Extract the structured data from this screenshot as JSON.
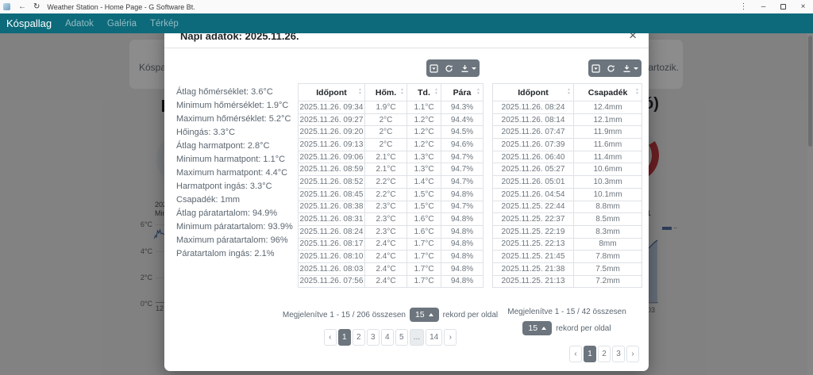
{
  "window": {
    "title": "Weather Station - Home Page - G Software Bt.",
    "controls": {
      "menu": "⋮",
      "minimize": "–",
      "close": "×"
    }
  },
  "icons": {
    "back": "←",
    "refresh": "↻"
  },
  "navbar": {
    "brand": "Kóspallag",
    "items": [
      "Adatok",
      "Galéria",
      "Térkép"
    ]
  },
  "background": {
    "alert_fragment_left": "Kóspallag",
    "alert_fragment_right": "tartozik.",
    "heading_fragment": "ó)",
    "chart_left": {
      "top_labels": [
        "202",
        "Min"
      ],
      "y_axis": [
        "6°C",
        "4°C",
        "2°C",
        "0°C"
      ],
      "x_tick": "12"
    },
    "chart_right": {
      "label_fragment": "1",
      "legend_fragment": "..",
      "x_tick": "03"
    }
  },
  "modal": {
    "title": "Napi adatok: 2025.11.26.",
    "close_label": "×",
    "stats": [
      "Átlag hőmérséklet: 3.6°C",
      "Minimum hőmérséklet: 1.9°C",
      "Maximum hőmérséklet: 5.2°C",
      "Hőingás: 3.3°C",
      "Átlag harmatpont: 2.8°C",
      "Minimum harmatpont: 1.1°C",
      "Maximum harmatpont: 4.4°C",
      "Harmatpont ingás: 3.3°C",
      "Csapadék: 1mm",
      "Átlag páratartalom: 94.9%",
      "Minimum páratartalom: 93.9%",
      "Maximum páratartalom: 96%",
      "Páratartalom ingás: 2.1%"
    ],
    "weather_table": {
      "headers": [
        "Időpont",
        "Hőm.",
        "Td.",
        "Pára"
      ],
      "rows": [
        [
          "2025.11.26. 09:34",
          "1.9°C",
          "1.1°C",
          "94.3%"
        ],
        [
          "2025.11.26. 09:27",
          "2°C",
          "1.2°C",
          "94.4%"
        ],
        [
          "2025.11.26. 09:20",
          "2°C",
          "1.2°C",
          "94.5%"
        ],
        [
          "2025.11.26. 09:13",
          "2°C",
          "1.2°C",
          "94.6%"
        ],
        [
          "2025.11.26. 09:06",
          "2.1°C",
          "1.3°C",
          "94.7%"
        ],
        [
          "2025.11.26. 08:59",
          "2.1°C",
          "1.3°C",
          "94.7%"
        ],
        [
          "2025.11.26. 08:52",
          "2.2°C",
          "1.4°C",
          "94.7%"
        ],
        [
          "2025.11.26. 08:45",
          "2.2°C",
          "1.5°C",
          "94.8%"
        ],
        [
          "2025.11.26. 08:38",
          "2.3°C",
          "1.5°C",
          "94.7%"
        ],
        [
          "2025.11.26. 08:31",
          "2.3°C",
          "1.6°C",
          "94.8%"
        ],
        [
          "2025.11.26. 08:24",
          "2.3°C",
          "1.6°C",
          "94.8%"
        ],
        [
          "2025.11.26. 08:17",
          "2.4°C",
          "1.7°C",
          "94.8%"
        ],
        [
          "2025.11.26. 08:10",
          "2.4°C",
          "1.7°C",
          "94.8%"
        ],
        [
          "2025.11.26. 08:03",
          "2.4°C",
          "1.7°C",
          "94.8%"
        ],
        [
          "2025.11.26. 07:56",
          "2.4°C",
          "1.7°C",
          "94.8%"
        ]
      ],
      "summary": "Megjelenítve 1 - 15 / 206 összesen",
      "page_size": "15",
      "page_size_suffix": "rekord per oldal",
      "active_page": "1",
      "pages": [
        "‹",
        "1",
        "2",
        "3",
        "4",
        "5",
        "...",
        "14",
        "›"
      ]
    },
    "rain_table": {
      "headers": [
        "Időpont",
        "Csapadék"
      ],
      "rows": [
        [
          "2025.11.26. 08:24",
          "12.4mm"
        ],
        [
          "2025.11.26. 08:14",
          "12.1mm"
        ],
        [
          "2025.11.26. 07:47",
          "11.9mm"
        ],
        [
          "2025.11.26. 07:39",
          "11.6mm"
        ],
        [
          "2025.11.26. 06:40",
          "11.4mm"
        ],
        [
          "2025.11.26. 05:27",
          "10.6mm"
        ],
        [
          "2025.11.26. 05:01",
          "10.3mm"
        ],
        [
          "2025.11.26. 04:54",
          "10.1mm"
        ],
        [
          "2025.11.25. 22:44",
          "8.8mm"
        ],
        [
          "2025.11.25. 22:37",
          "8.5mm"
        ],
        [
          "2025.11.25. 22:19",
          "8.3mm"
        ],
        [
          "2025.11.25. 22:13",
          "8mm"
        ],
        [
          "2025.11.25. 21:45",
          "7.8mm"
        ],
        [
          "2025.11.25. 21:38",
          "7.5mm"
        ],
        [
          "2025.11.25. 21:13",
          "7.2mm"
        ]
      ],
      "summary": "Megjelenítve 1 - 15 / 42 összesen",
      "page_size": "15",
      "page_size_suffix": "rekord per oldal",
      "active_page": "1",
      "pages": [
        "‹",
        "1",
        "2",
        "3",
        "›"
      ]
    }
  },
  "colors": {
    "navbar_teal": "#0d6a7a",
    "button_gray": "#6c757d",
    "chart_blue": "#3a66a8",
    "gauge_red": "#c0393f"
  }
}
